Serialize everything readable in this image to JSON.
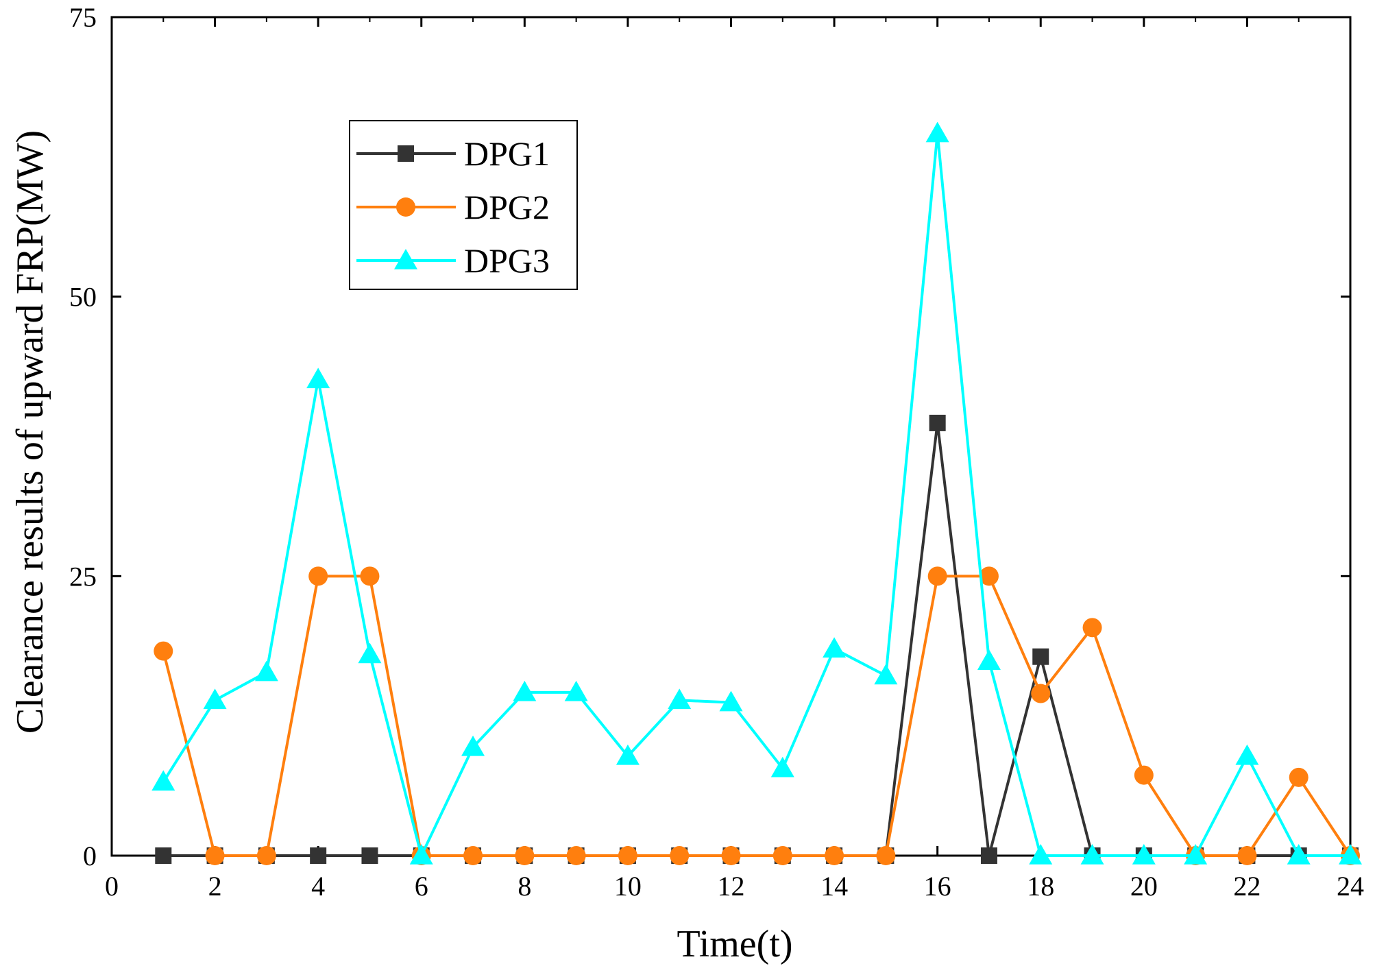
{
  "chart_data": {
    "type": "line",
    "title": "",
    "xlabel": "Time(t)",
    "ylabel": "Clearance results of upward FRP(MW)",
    "xlim": [
      0,
      24
    ],
    "ylim": [
      0,
      75
    ],
    "xticks": [
      0,
      2,
      4,
      6,
      8,
      10,
      12,
      14,
      16,
      18,
      20,
      22,
      24
    ],
    "yticks": [
      0,
      25,
      50,
      75
    ],
    "x": [
      1,
      2,
      3,
      4,
      5,
      6,
      7,
      8,
      9,
      10,
      11,
      12,
      13,
      14,
      15,
      16,
      17,
      18,
      19,
      20,
      21,
      22,
      23,
      24
    ],
    "legend_position": "top-left",
    "series": [
      {
        "name": "DPG1",
        "color": "#333333",
        "marker": "square",
        "values": [
          0,
          0,
          0,
          0,
          0,
          0,
          0,
          0,
          0,
          0,
          0,
          0,
          0,
          0,
          0,
          38.7,
          0,
          17.8,
          0,
          0,
          0,
          0,
          0,
          0
        ]
      },
      {
        "name": "DPG2",
        "color": "#ff7f0e",
        "marker": "circle",
        "values": [
          18.3,
          0,
          0,
          25,
          25,
          0,
          0,
          0,
          0,
          0,
          0,
          0,
          0,
          0,
          0,
          25,
          25,
          14.5,
          20.4,
          7.2,
          0,
          0,
          7,
          0
        ]
      },
      {
        "name": "DPG3",
        "color": "#00ffff",
        "marker": "triangle",
        "values": [
          6.6,
          13.9,
          16.4,
          42.6,
          18,
          0,
          9.7,
          14.6,
          14.6,
          8.9,
          13.9,
          13.7,
          7.8,
          18.5,
          16.1,
          64.6,
          17.4,
          0,
          0,
          0,
          0,
          8.9,
          0,
          0
        ]
      }
    ]
  }
}
